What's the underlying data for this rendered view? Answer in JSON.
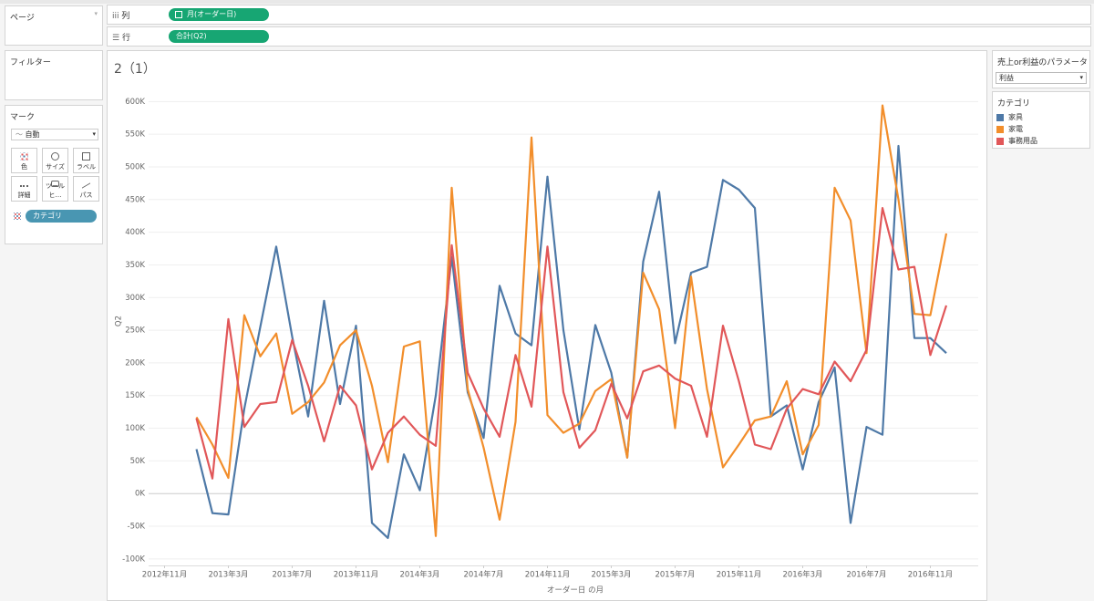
{
  "panels": {
    "pages": "ページ",
    "filters": "フィルター",
    "marks": "マーク",
    "mark_type": "自動",
    "buttons": [
      "色",
      "サイズ",
      "ラベル",
      "詳細",
      "ツールヒ…",
      "パス"
    ],
    "color_pill": "カテゴリ"
  },
  "shelves": {
    "columns_label": "列",
    "columns_pill": "月(オーダー日)",
    "rows_label": "行",
    "rows_pill": "合計(Q2)"
  },
  "parameter": {
    "title": "売上or利益のパラメータ",
    "value": "利益"
  },
  "chart_data": {
    "type": "line",
    "title": "2（1）",
    "x_label": "オーダー日 の月",
    "y_label": "Q2",
    "legend_title": "カテゴリ",
    "legend": "right",
    "grid": true,
    "x": [
      "2013-01",
      "2013-02",
      "2013-03",
      "2013-04",
      "2013-05",
      "2013-06",
      "2013-07",
      "2013-08",
      "2013-09",
      "2013-10",
      "2013-11",
      "2013-12",
      "2014-01",
      "2014-02",
      "2014-03",
      "2014-04",
      "2014-05",
      "2014-06",
      "2014-07",
      "2014-08",
      "2014-09",
      "2014-10",
      "2014-11",
      "2014-12",
      "2015-01",
      "2015-02",
      "2015-03",
      "2015-04",
      "2015-05",
      "2015-06",
      "2015-07",
      "2015-08",
      "2015-09",
      "2015-10",
      "2015-11",
      "2015-12",
      "2016-01",
      "2016-02",
      "2016-03",
      "2016-04",
      "2016-05",
      "2016-06",
      "2016-07",
      "2016-08",
      "2016-09",
      "2016-10",
      "2016-11",
      "2016-12"
    ],
    "xlim": [
      "2012-10",
      "2017-02"
    ],
    "xticks": [
      {
        "value": "2012-11",
        "label": "2012年11月"
      },
      {
        "value": "2013-03",
        "label": "2013年3月"
      },
      {
        "value": "2013-07",
        "label": "2013年7月"
      },
      {
        "value": "2013-11",
        "label": "2013年11月"
      },
      {
        "value": "2014-03",
        "label": "2014年3月"
      },
      {
        "value": "2014-07",
        "label": "2014年7月"
      },
      {
        "value": "2014-11",
        "label": "2014年11月"
      },
      {
        "value": "2015-03",
        "label": "2015年3月"
      },
      {
        "value": "2015-07",
        "label": "2015年7月"
      },
      {
        "value": "2015-11",
        "label": "2015年11月"
      },
      {
        "value": "2016-03",
        "label": "2016年3月"
      },
      {
        "value": "2016-07",
        "label": "2016年7月"
      },
      {
        "value": "2016-11",
        "label": "2016年11月"
      }
    ],
    "ylim": [
      -110000,
      620000
    ],
    "yticks": [
      {
        "value": -100000,
        "label": "-100K"
      },
      {
        "value": -50000,
        "label": "-50K"
      },
      {
        "value": 0,
        "label": "0K"
      },
      {
        "value": 50000,
        "label": "50K"
      },
      {
        "value": 100000,
        "label": "100K"
      },
      {
        "value": 150000,
        "label": "150K"
      },
      {
        "value": 200000,
        "label": "200K"
      },
      {
        "value": 250000,
        "label": "250K"
      },
      {
        "value": 300000,
        "label": "300K"
      },
      {
        "value": 350000,
        "label": "350K"
      },
      {
        "value": 400000,
        "label": "400K"
      },
      {
        "value": 450000,
        "label": "450K"
      },
      {
        "value": 500000,
        "label": "500K"
      },
      {
        "value": 550000,
        "label": "550K"
      },
      {
        "value": 600000,
        "label": "600K"
      }
    ],
    "series": [
      {
        "name": "家具",
        "color": "#4e79a7",
        "values": [
          68000,
          -30000,
          -32000,
          130000,
          255000,
          378000,
          240000,
          118000,
          295000,
          137000,
          257000,
          -45000,
          -68000,
          60000,
          5000,
          150000,
          362000,
          155000,
          85000,
          318000,
          245000,
          227000,
          485000,
          250000,
          98000,
          258000,
          185000,
          55000,
          355000,
          462000,
          230000,
          338000,
          347000,
          480000,
          465000,
          437000,
          118000,
          135000,
          37000,
          140000,
          193000,
          -45000,
          102000,
          90000,
          532000,
          238000,
          238000,
          215000
        ]
      },
      {
        "name": "家電",
        "color": "#f28e2b",
        "values": [
          117000,
          75000,
          24000,
          273000,
          210000,
          245000,
          122000,
          140000,
          170000,
          227000,
          250000,
          165000,
          48000,
          225000,
          233000,
          -65000,
          468000,
          160000,
          70000,
          -40000,
          110000,
          545000,
          120000,
          93000,
          107000,
          157000,
          175000,
          55000,
          338000,
          282000,
          100000,
          332000,
          160000,
          40000,
          75000,
          112000,
          118000,
          172000,
          60000,
          105000,
          468000,
          418000,
          215000,
          594000,
          450000,
          275000,
          273000,
          398000
        ]
      },
      {
        "name": "事務用品",
        "color": "#e15759",
        "values": [
          115000,
          23000,
          267000,
          102000,
          137000,
          140000,
          235000,
          165000,
          80000,
          165000,
          135000,
          37000,
          93000,
          118000,
          90000,
          73000,
          380000,
          185000,
          130000,
          87000,
          212000,
          133000,
          378000,
          155000,
          70000,
          97000,
          168000,
          115000,
          187000,
          196000,
          176000,
          165000,
          87000,
          257000,
          172000,
          75000,
          68000,
          130000,
          160000,
          152000,
          202000,
          172000,
          220000,
          437000,
          343000,
          347000,
          212000,
          288000
        ]
      }
    ]
  }
}
